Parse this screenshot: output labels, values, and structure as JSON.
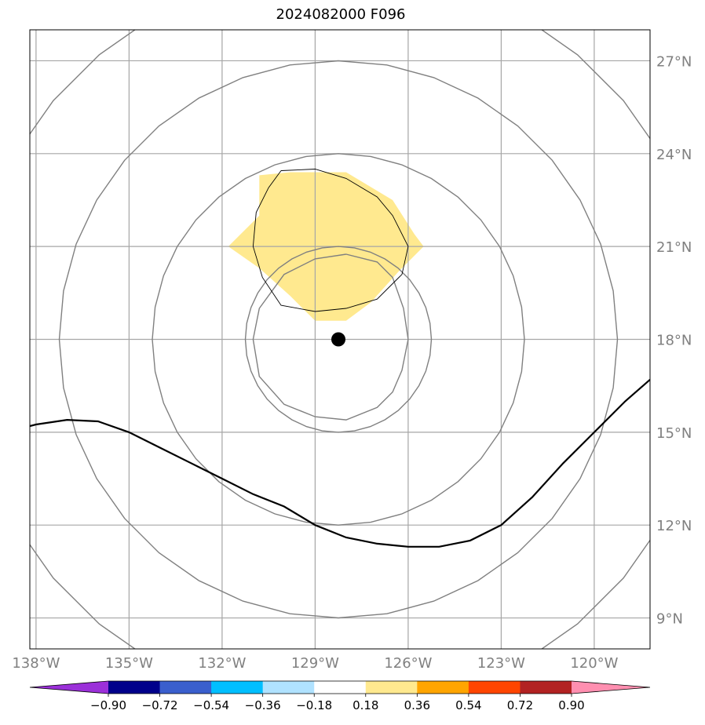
{
  "title": "2024082000 F096",
  "chart_data": {
    "type": "map",
    "title": "2024082000 F096",
    "lon_range": [
      -138.2,
      -118.2
    ],
    "lat_range": [
      8.0,
      28.0
    ],
    "x_ticks": [
      "138°W",
      "135°W",
      "132°W",
      "129°W",
      "126°W",
      "123°W",
      "120°W"
    ],
    "x_tick_values": [
      -138,
      -135,
      -132,
      -129,
      -126,
      -123,
      -120
    ],
    "y_ticks": [
      "9°N",
      "12°N",
      "15°N",
      "18°N",
      "21°N",
      "24°N",
      "27°N"
    ],
    "y_tick_values": [
      9,
      12,
      15,
      18,
      21,
      24,
      27
    ],
    "grid": true,
    "storm_center": {
      "lon": -128.25,
      "lat": 18.0
    },
    "range_rings_radius_deg": [
      3,
      6,
      9,
      12
    ],
    "filled_region": {
      "level": "0.18–0.36",
      "color": "#ffe98f",
      "polygon": [
        [
          -130.8,
          23.3
        ],
        [
          -129.8,
          23.4
        ],
        [
          -128.0,
          23.4
        ],
        [
          -126.5,
          22.5
        ],
        [
          -125.8,
          21.4
        ],
        [
          -125.5,
          21.0
        ],
        [
          -126.3,
          20.2
        ],
        [
          -127.2,
          19.2
        ],
        [
          -128.0,
          18.6
        ],
        [
          -129.0,
          18.6
        ],
        [
          -129.8,
          19.4
        ],
        [
          -130.8,
          20.3
        ],
        [
          -131.8,
          21.0
        ],
        [
          -130.8,
          22.0
        ]
      ]
    },
    "thin_contour": [
      [
        -130.1,
        23.45
      ],
      [
        -129.0,
        23.5
      ],
      [
        -128.0,
        23.2
      ],
      [
        -127.0,
        22.6
      ],
      [
        -126.5,
        22.0
      ],
      [
        -126.0,
        21.0
      ],
      [
        -126.2,
        20.1
      ],
      [
        -127.0,
        19.3
      ],
      [
        -128.0,
        19.0
      ],
      [
        -129.0,
        18.9
      ],
      [
        -130.1,
        19.1
      ],
      [
        -130.7,
        20.0
      ],
      [
        -131.0,
        21.0
      ],
      [
        -130.9,
        22.1
      ],
      [
        -130.5,
        22.9
      ],
      [
        -130.1,
        23.45
      ]
    ],
    "inner_contour": [
      [
        -128.0,
        20.75
      ],
      [
        -127.0,
        20.5
      ],
      [
        -126.5,
        20.0
      ],
      [
        -126.15,
        19.0
      ],
      [
        -126.0,
        18.0
      ],
      [
        -126.2,
        17.0
      ],
      [
        -126.5,
        16.3
      ],
      [
        -127.0,
        15.8
      ],
      [
        -128.0,
        15.4
      ],
      [
        -129.0,
        15.5
      ],
      [
        -130.0,
        15.9
      ],
      [
        -130.8,
        16.8
      ],
      [
        -131.0,
        18.0
      ],
      [
        -130.8,
        19.0
      ],
      [
        -130.0,
        20.1
      ],
      [
        -129.0,
        20.6
      ],
      [
        -128.0,
        20.75
      ]
    ],
    "thick_line": [
      [
        -138.2,
        15.2
      ],
      [
        -138.0,
        15.25
      ],
      [
        -137.0,
        15.4
      ],
      [
        -136.0,
        15.35
      ],
      [
        -135.0,
        15.0
      ],
      [
        -134.0,
        14.5
      ],
      [
        -133.0,
        14.0
      ],
      [
        -132.0,
        13.5
      ],
      [
        -131.0,
        13.0
      ],
      [
        -130.0,
        12.6
      ],
      [
        -129.0,
        12.0
      ],
      [
        -128.0,
        11.6
      ],
      [
        -127.0,
        11.4
      ],
      [
        -126.0,
        11.3
      ],
      [
        -125.0,
        11.3
      ],
      [
        -124.0,
        11.5
      ],
      [
        -123.0,
        12.0
      ],
      [
        -122.0,
        12.9
      ],
      [
        -121.0,
        14.0
      ],
      [
        -120.0,
        15.0
      ],
      [
        -119.0,
        16.0
      ],
      [
        -118.2,
        16.7
      ]
    ],
    "colorbar": {
      "colors": [
        "#9b30d9",
        "#00008b",
        "#3a5fcd",
        "#00bfff",
        "#b0e2ff",
        "#ffffff",
        "#ffe98f",
        "#ffa500",
        "#ff4500",
        "#b22222",
        "#ff8fb0"
      ],
      "tick_labels": [
        "−0.90",
        "−0.72",
        "−0.54",
        "−0.36",
        "−0.18",
        "0.18",
        "0.36",
        "0.54",
        "0.72",
        "0.90"
      ],
      "extend": "both"
    }
  }
}
